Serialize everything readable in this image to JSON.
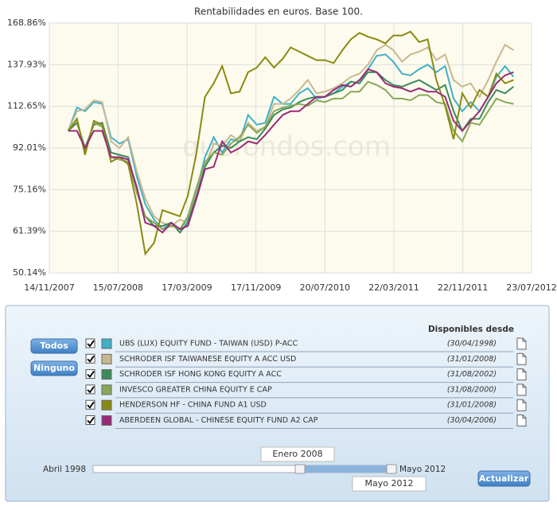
{
  "chart_data": {
    "type": "line",
    "title": "Rentabilidades en euros. Base 100.",
    "watermark": "quefondos.com",
    "yscale": "log",
    "grid": true,
    "ylim": [
      50.14,
      168.86
    ],
    "yticks": [
      {
        "value": 50.14,
        "label": "50.14%"
      },
      {
        "value": 61.39,
        "label": "61.39%"
      },
      {
        "value": 75.16,
        "label": "75.16%"
      },
      {
        "value": 92.01,
        "label": "92.01%"
      },
      {
        "value": 112.65,
        "label": "112.65%"
      },
      {
        "value": 137.93,
        "label": "137.93%"
      },
      {
        "value": 168.86,
        "label": "168.86%"
      }
    ],
    "xlim": [
      "2007-11-14",
      "2012-07-23"
    ],
    "xticks": [
      {
        "value": "2007-11-14",
        "label": "14/11/2007"
      },
      {
        "value": "2008-07-15",
        "label": "15/07/2008"
      },
      {
        "value": "2009-03-17",
        "label": "17/03/2009"
      },
      {
        "value": "2009-11-17",
        "label": "17/11/2009"
      },
      {
        "value": "2010-07-20",
        "label": "20/07/2010"
      },
      {
        "value": "2011-03-22",
        "label": "22/03/2011"
      },
      {
        "value": "2011-11-22",
        "label": "22/11/2011"
      },
      {
        "value": "2012-07-23",
        "label": "23/07/2012"
      }
    ],
    "x": [
      "2008-01-20",
      "2008-02-20",
      "2008-03-20",
      "2008-04-20",
      "2008-05-20",
      "2008-06-20",
      "2008-07-20",
      "2008-08-20",
      "2008-09-20",
      "2008-10-20",
      "2008-11-20",
      "2008-12-20",
      "2009-01-20",
      "2009-02-20",
      "2009-03-20",
      "2009-04-20",
      "2009-05-20",
      "2009-06-20",
      "2009-07-20",
      "2009-08-20",
      "2009-09-20",
      "2009-10-20",
      "2009-11-20",
      "2009-12-20",
      "2010-01-20",
      "2010-02-20",
      "2010-03-20",
      "2010-04-20",
      "2010-05-20",
      "2010-06-20",
      "2010-07-20",
      "2010-08-20",
      "2010-09-20",
      "2010-10-20",
      "2010-11-20",
      "2010-12-20",
      "2011-01-20",
      "2011-02-20",
      "2011-03-20",
      "2011-04-20",
      "2011-05-20",
      "2011-06-20",
      "2011-07-20",
      "2011-08-20",
      "2011-09-20",
      "2011-10-20",
      "2011-11-20",
      "2011-12-20",
      "2012-01-20",
      "2012-02-20",
      "2012-03-20",
      "2012-04-20",
      "2012-05-20"
    ],
    "series": [
      {
        "name": "UBS (LUX) EQUITY FUND - TAIWAN (USD) P-ACC",
        "color": "#40b0c8",
        "values": [
          100,
          112,
          110,
          115,
          114,
          97,
          94,
          96,
          80,
          70,
          65,
          62,
          64,
          62,
          65,
          75,
          88,
          97,
          90,
          96,
          95,
          108,
          103,
          104,
          118,
          114,
          114,
          120,
          123,
          117,
          118,
          120,
          124,
          127,
          126,
          135,
          144,
          145,
          140,
          132,
          131,
          135,
          138,
          133,
          137,
          117,
          110,
          115,
          110,
          118,
          130,
          137,
          130
        ]
      },
      {
        "name": "SCHRODER ISF TAIWANESE EQUITY A ACC USD",
        "color": "#c8b88e",
        "values": [
          100,
          110,
          111,
          116,
          115,
          95,
          92,
          97,
          82,
          72,
          66,
          64,
          63,
          65,
          64,
          74,
          84,
          94,
          93,
          98,
          95,
          104,
          100,
          102,
          114,
          114,
          117,
          122,
          128,
          120,
          121,
          123,
          126,
          130,
          132,
          138,
          148,
          152,
          148,
          140,
          145,
          147,
          150,
          141,
          145,
          128,
          124,
          126,
          118,
          128,
          140,
          152,
          148
        ]
      },
      {
        "name": "SCHRODER ISF HONG KONG EQUITY A ACC",
        "color": "#3a8a5a",
        "values": [
          100,
          104,
          92,
          103,
          104,
          90,
          89,
          88,
          75,
          66,
          63,
          63,
          64,
          61,
          64,
          73,
          84,
          90,
          93,
          92,
          95,
          97,
          96,
          101,
          108,
          111,
          112,
          115,
          117,
          118,
          118,
          120,
          122,
          127,
          126,
          133,
          133,
          128,
          125,
          124,
          126,
          128,
          125,
          122,
          125,
          110,
          100,
          106,
          106,
          115,
          122,
          120,
          124
        ]
      },
      {
        "name": "INVESCO GREATER CHINA EQUITY E CAP",
        "color": "#88a858",
        "values": [
          100,
          106,
          90,
          104,
          102,
          88,
          87,
          86,
          74,
          66,
          64,
          62,
          63,
          62,
          66,
          76,
          86,
          90,
          89,
          94,
          97,
          103,
          99,
          102,
          110,
          112,
          113,
          114,
          113,
          116,
          115,
          117,
          117,
          121,
          121,
          127,
          125,
          122,
          117,
          117,
          116,
          119,
          119,
          115,
          114,
          100,
          95,
          104,
          103,
          110,
          117,
          115,
          114
        ]
      },
      {
        "name": "HENDERSON HF - CHINA FUND A1 USD",
        "color": "#8a8a10",
        "values": [
          100,
          106,
          89,
          105,
          103,
          86,
          88,
          85,
          70,
          55,
          58,
          68,
          67,
          66,
          73,
          90,
          118,
          126,
          137,
          120,
          121,
          133,
          136,
          143,
          136,
          142,
          150,
          147,
          144,
          141,
          141,
          139,
          148,
          156,
          161,
          158,
          156,
          153,
          159,
          159,
          162,
          154,
          156,
          128,
          113,
          96,
          120,
          112,
          122,
          118,
          132,
          126,
          128
        ]
      },
      {
        "name": "ABERDEEN GLOBAL - CHINESE EQUITY FUND A2 CAP",
        "color": "#9a2a78",
        "values": [
          100,
          100,
          92,
          100,
          100,
          88,
          88,
          87,
          76,
          64,
          63,
          61,
          64,
          62,
          63,
          72,
          83,
          84,
          95,
          90,
          92,
          95,
          94,
          98,
          103,
          108,
          110,
          110,
          114,
          118,
          118,
          122,
          125,
          124,
          128,
          135,
          133,
          126,
          124,
          123,
          121,
          123,
          121,
          121,
          118,
          105,
          100,
          105,
          110,
          118,
          126,
          131,
          133
        ]
      }
    ]
  },
  "panel": {
    "header": "Disponibles desde",
    "buttons": {
      "all": "Todos",
      "none": "Ninguno",
      "update": "Actualizar"
    },
    "rows": [
      {
        "checked": true,
        "since": "(30/04/1998)"
      },
      {
        "checked": true,
        "since": "(31/01/2008)"
      },
      {
        "checked": true,
        "since": "(31/08/2002)"
      },
      {
        "checked": true,
        "since": "(31/08/2000)"
      },
      {
        "checked": true,
        "since": "(31/01/2008)"
      },
      {
        "checked": true,
        "since": "(30/04/2006)"
      }
    ],
    "slider": {
      "min_label": "Abril 1998",
      "max_label": "Mayo 2012",
      "from": "Enero 2008",
      "to": "Mayo 2012"
    }
  }
}
